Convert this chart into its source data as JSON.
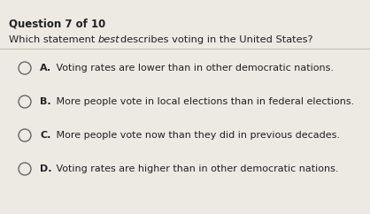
{
  "title": "Question 7 of 10",
  "question_pre": "Which statement ",
  "question_italic": "best",
  "question_post": "describes voting in the United States?",
  "options": [
    {
      "label": "A.",
      "text": " Voting rates are lower than in other democratic nations."
    },
    {
      "label": "B.",
      "text": " More people vote in local elections than in federal elections."
    },
    {
      "label": "C.",
      "text": " More people vote now than they did in previous decades."
    },
    {
      "label": "D.",
      "text": " Voting rates are higher than in other democratic nations."
    }
  ],
  "bg_color": "#ede9e3",
  "text_color": "#222222",
  "title_fontsize": 8.5,
  "question_fontsize": 8.2,
  "option_fontsize": 8.0,
  "circle_edge_color": "#666666",
  "separator_color": "#c8c0b4"
}
